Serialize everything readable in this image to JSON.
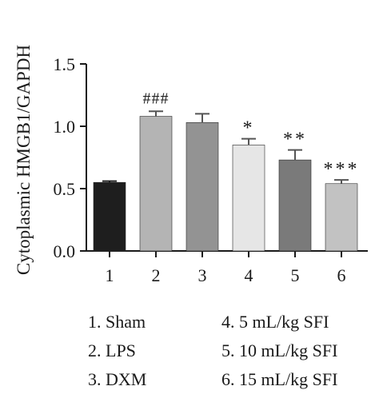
{
  "chart_data": {
    "type": "bar",
    "ylabel": "Cytoplasmic HMGB1/GAPDH",
    "ylim": [
      0,
      1.5
    ],
    "yticks": [
      "0.0",
      "0.5",
      "1.0",
      "1.5"
    ],
    "categories": [
      "1",
      "2",
      "3",
      "4",
      "5",
      "6"
    ],
    "values": [
      0.55,
      1.08,
      1.03,
      0.85,
      0.73,
      0.54
    ],
    "errors": [
      0.01,
      0.04,
      0.07,
      0.05,
      0.08,
      0.03
    ],
    "annotations": [
      "",
      "###",
      "",
      "*",
      "**",
      "***"
    ],
    "colors": [
      "#1e1e1e",
      "#b4b4b4",
      "#939393",
      "#e6e6e6",
      "#7a7a7a",
      "#c2c2c2"
    ],
    "grid": false
  },
  "legend": [
    "1. Sham",
    "2. LPS",
    "3. DXM",
    "4. 5 mL/kg SFI",
    "5. 10 mL/kg SFI",
    "6. 15 mL/kg SFI"
  ]
}
